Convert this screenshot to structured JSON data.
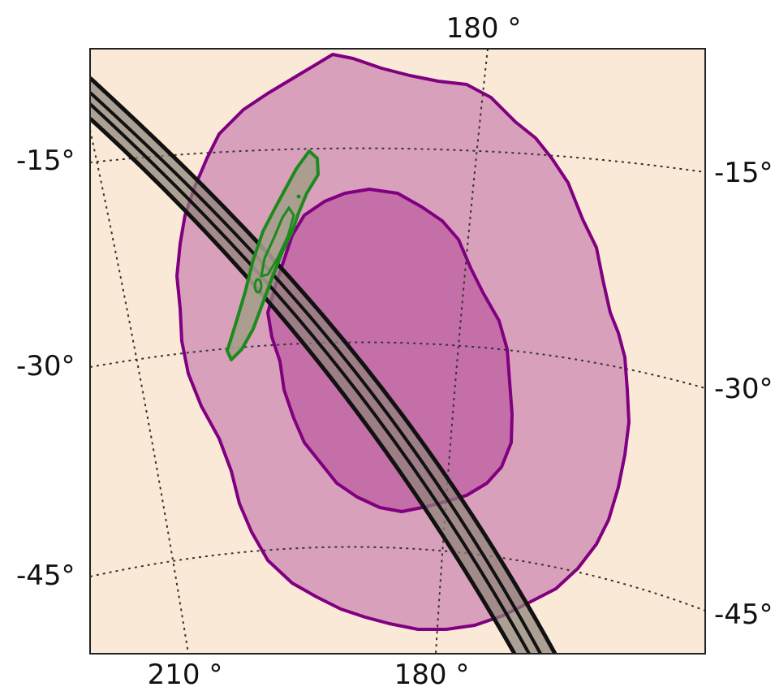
{
  "map": {
    "background_color": "#fbe9d7",
    "outer_region_color": "#d9a0bc",
    "inner_region_color": "#c46fa8",
    "region_outline_color": "#800080",
    "band_fill_color": "#8e8278",
    "band_outline_color": "#111111",
    "green_contour_color": "#1d8a1d",
    "green_fill_color": "#a69c8c"
  },
  "axes": {
    "top_longitude_label": "180 °",
    "bottom_longitude_labels": [
      "210 °",
      "180 °"
    ],
    "left_latitude_labels": [
      "-15°",
      "-30°",
      "-45°"
    ],
    "right_latitude_labels": [
      "-15°",
      "-30°",
      "-45°"
    ]
  }
}
